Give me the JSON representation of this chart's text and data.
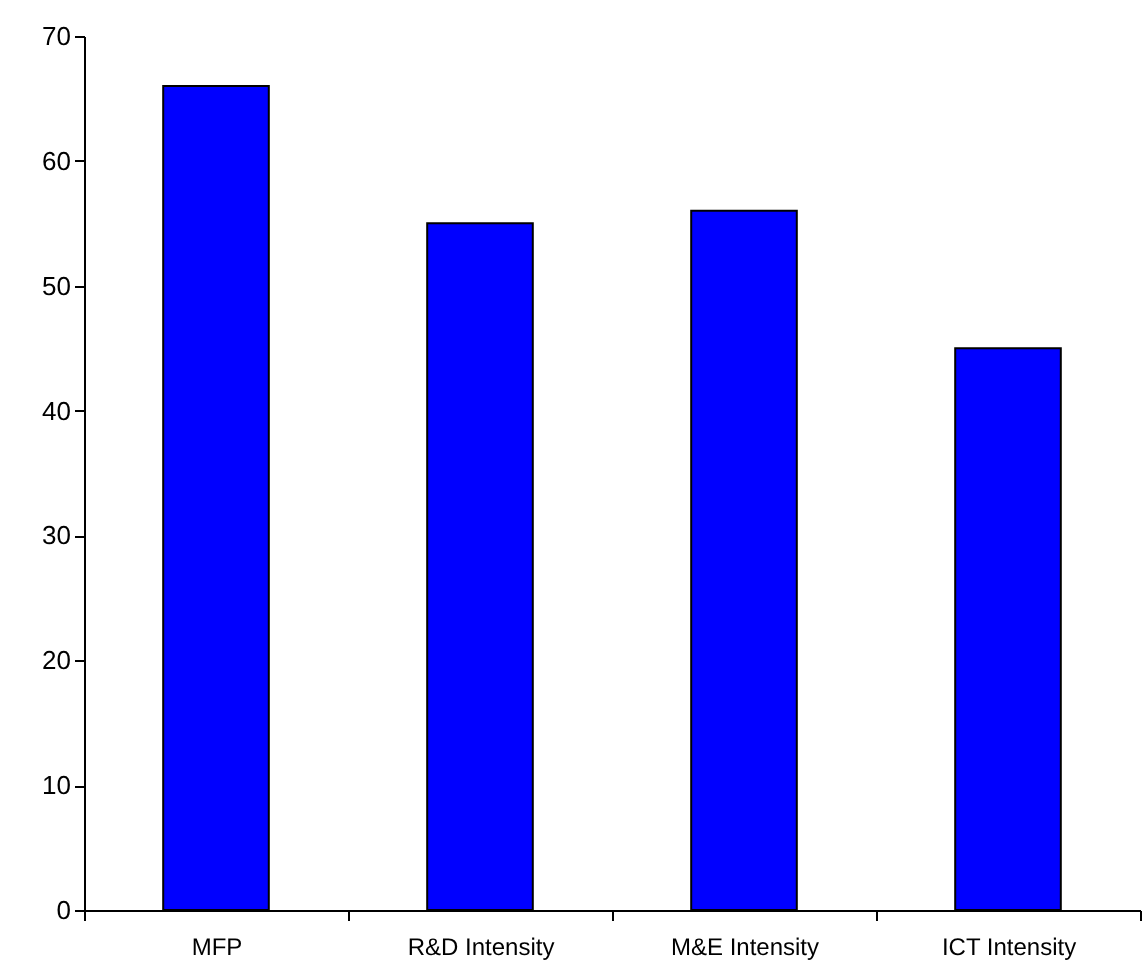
{
  "chart_data": {
    "type": "bar",
    "categories": [
      "MFP",
      "R&D Intensity",
      "M&E Intensity",
      "ICT Intensity"
    ],
    "values": [
      66,
      55,
      56,
      45
    ],
    "color": "#0000ff",
    "ylim": [
      0,
      70
    ],
    "yticks": [
      0,
      10,
      20,
      30,
      40,
      50,
      60,
      70
    ],
    "grid": false
  }
}
